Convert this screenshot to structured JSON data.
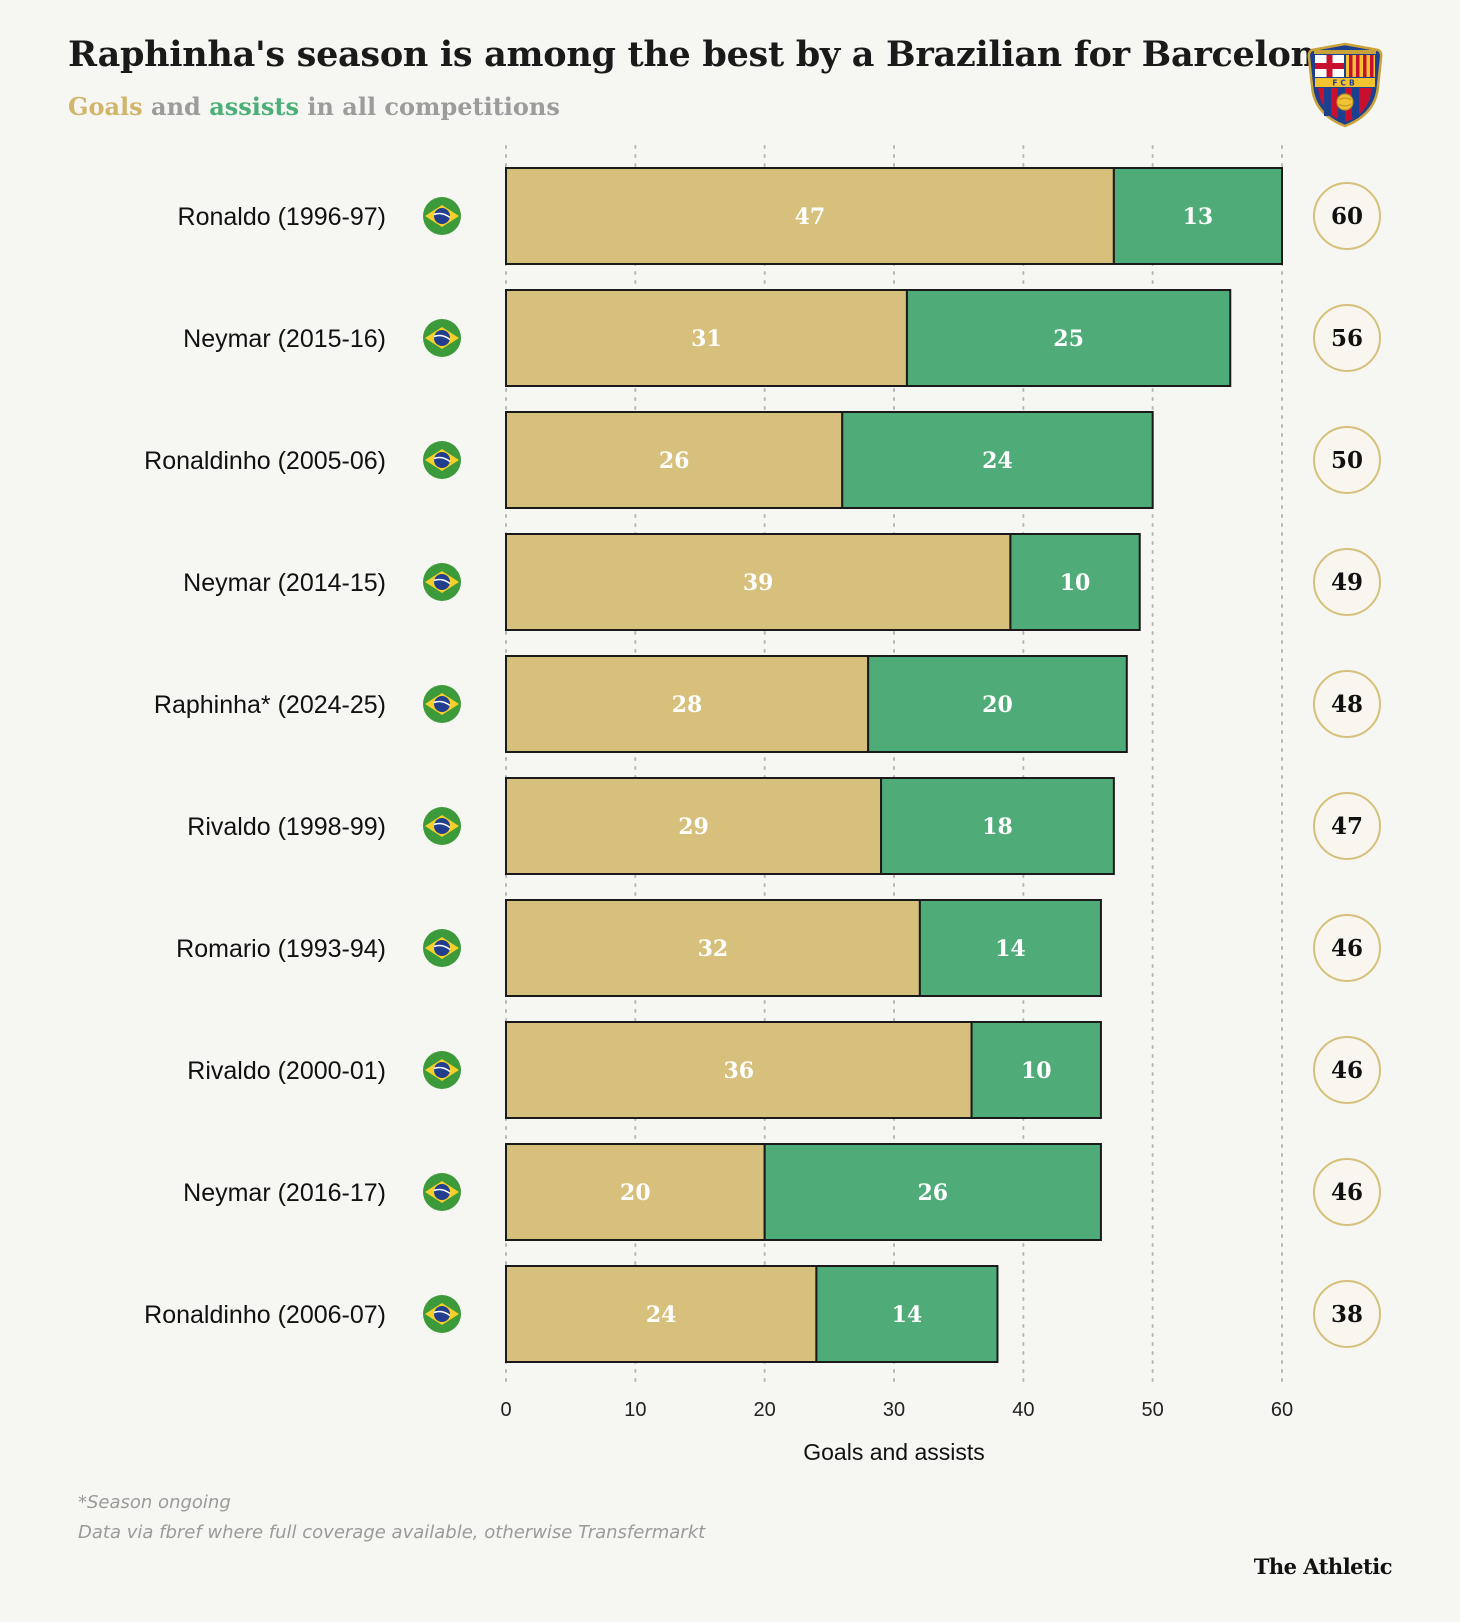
{
  "header": {
    "title": "Raphinha's season is among the best by a Brazilian for Barcelona",
    "subtitle_goals": "Goals",
    "subtitle_and": "and",
    "subtitle_assists": "assists",
    "subtitle_rest": "in all competitions"
  },
  "crest": {
    "lettering": "FCB",
    "colors": {
      "blue": "#1d3f8f",
      "red": "#c8102e",
      "gold": "#f2c230"
    }
  },
  "chart_data": {
    "type": "bar",
    "orientation": "horizontal",
    "stacked": true,
    "categories": [
      "Ronaldo (1996-97)",
      "Neymar (2015-16)",
      "Ronaldinho (2005-06)",
      "Neymar (2014-15)",
      "Raphinha* (2024-25)",
      "Rivaldo (1998-99)",
      "Romario (1993-94)",
      "Rivaldo (2000-01)",
      "Neymar (2016-17)",
      "Ronaldinho (2006-07)"
    ],
    "series": [
      {
        "name": "Goals",
        "color": "#d6c07b",
        "values": [
          47,
          31,
          26,
          39,
          28,
          29,
          32,
          36,
          20,
          24
        ]
      },
      {
        "name": "assists",
        "color": "#4fab78",
        "values": [
          13,
          25,
          24,
          10,
          20,
          18,
          14,
          10,
          26,
          14
        ]
      }
    ],
    "totals": [
      60,
      56,
      50,
      49,
      48,
      47,
      46,
      46,
      46,
      38
    ],
    "flag_icon": "brazil-flag-icon",
    "xlabel": "Goals and assists",
    "xlim": [
      0,
      60
    ],
    "xticks": [
      0,
      10,
      20,
      30,
      40,
      50,
      60
    ],
    "grid": "vertical dotted",
    "total_badge_color": "#d6c07b"
  },
  "footer": {
    "note1": "*Season ongoing",
    "note2": "Data via fbref where full coverage available, otherwise Transfermarkt",
    "brand": "The Athletic"
  }
}
